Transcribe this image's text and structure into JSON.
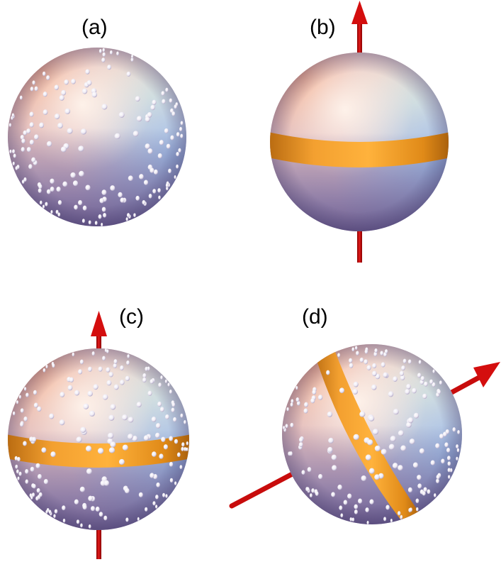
{
  "panels": [
    {
      "id": "a",
      "label": "(a)",
      "has_axis": false,
      "has_band": false,
      "has_particles": true
    },
    {
      "id": "b",
      "label": "(b)",
      "has_axis": true,
      "has_band": true,
      "has_particles": false
    },
    {
      "id": "c",
      "label": "(c)",
      "has_axis": true,
      "has_band": true,
      "has_particles": true
    },
    {
      "id": "d",
      "label": "(d)",
      "has_axis": true,
      "has_band": true,
      "has_particles": true,
      "axis_tilted": true
    }
  ],
  "colors": {
    "axis": "#cc0000",
    "band": "#f5a020",
    "particle": "#f4f2f8",
    "sphere_highlight": "#fde7d8",
    "sphere_orange": "#e8a88a",
    "sphere_blue": "#a9b9de",
    "sphere_shadow": "#5c4f86"
  }
}
